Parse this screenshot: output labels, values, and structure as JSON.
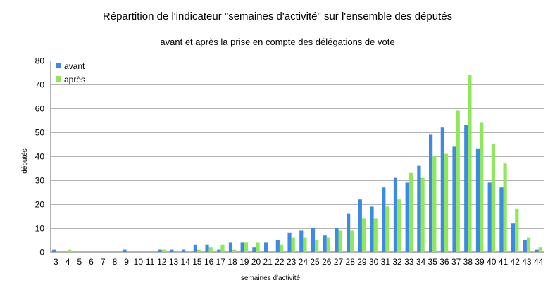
{
  "chart_data": {
    "type": "bar",
    "title": "Répartition de l'indicateur \"semaines d'activité\" sur l'ensemble des députés",
    "subtitle": "avant et après la prise en compte des délégations de vote",
    "xlabel": "semaines d'activité",
    "ylabel": "députés",
    "ylim": [
      0,
      80
    ],
    "yticks": [
      0,
      10,
      20,
      30,
      40,
      50,
      60,
      70,
      80
    ],
    "grid": true,
    "legend_position": "top-left",
    "categories": [
      "3",
      "4",
      "5",
      "6",
      "7",
      "8",
      "9",
      "10",
      "11",
      "12",
      "13",
      "14",
      "15",
      "16",
      "17",
      "18",
      "19",
      "20",
      "21",
      "22",
      "23",
      "24",
      "25",
      "26",
      "27",
      "28",
      "29",
      "30",
      "31",
      "32",
      "33",
      "34",
      "35",
      "36",
      "37",
      "38",
      "39",
      "40",
      "41",
      "42",
      "43",
      "44"
    ],
    "series": [
      {
        "name": "avant",
        "color": "#3b8ae6",
        "values": [
          1,
          0,
          0,
          0,
          0,
          0,
          1,
          0,
          0,
          1,
          1,
          1,
          3,
          3,
          1,
          4,
          4,
          2,
          4,
          5,
          8,
          9,
          10,
          7,
          10,
          16,
          22,
          19,
          27,
          31,
          29,
          36,
          49,
          52,
          44,
          53,
          43,
          29,
          27,
          12,
          5,
          1
        ]
      },
      {
        "name": "après",
        "color": "#8ee85a",
        "values": [
          0,
          1,
          0,
          0,
          0,
          0,
          0,
          0,
          0,
          1,
          0,
          0,
          1,
          2,
          3,
          1,
          4,
          4,
          0,
          3,
          6,
          6,
          5,
          6,
          9,
          9,
          14,
          14,
          19,
          22,
          33,
          31,
          40,
          41,
          59,
          74,
          54,
          45,
          37,
          18,
          6,
          2
        ]
      }
    ]
  }
}
